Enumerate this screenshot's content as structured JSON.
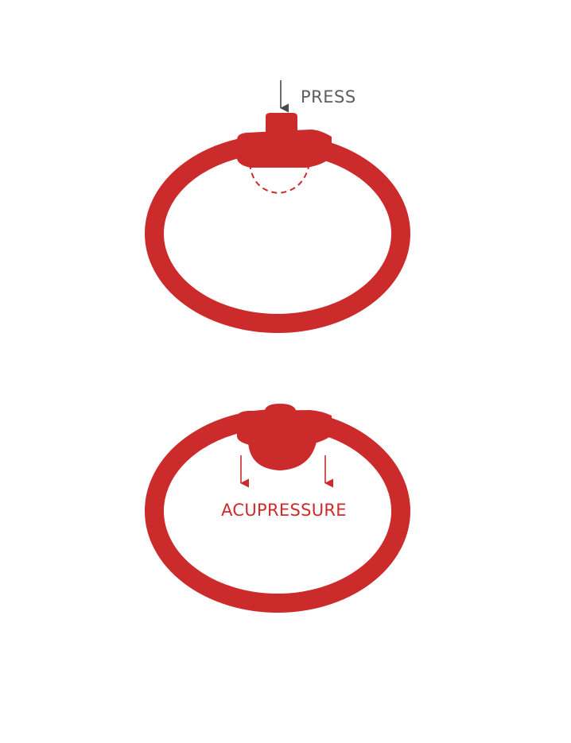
{
  "colors": {
    "band": "#cc2b2b",
    "press_arrow": "#4a4a4a",
    "press_text": "#5d5d5d",
    "acupressure_text": "#cc2b2b",
    "background": "#ffffff"
  },
  "top_figure": {
    "state": "pressed",
    "label": "PRESS",
    "icons": [
      "down-arrow-icon",
      "dashed-dome-outline-icon"
    ]
  },
  "bottom_figure": {
    "state": "acupressure",
    "label": "ACUPRESSURE",
    "icons": [
      "down-arrow-icon",
      "down-arrow-icon"
    ]
  }
}
